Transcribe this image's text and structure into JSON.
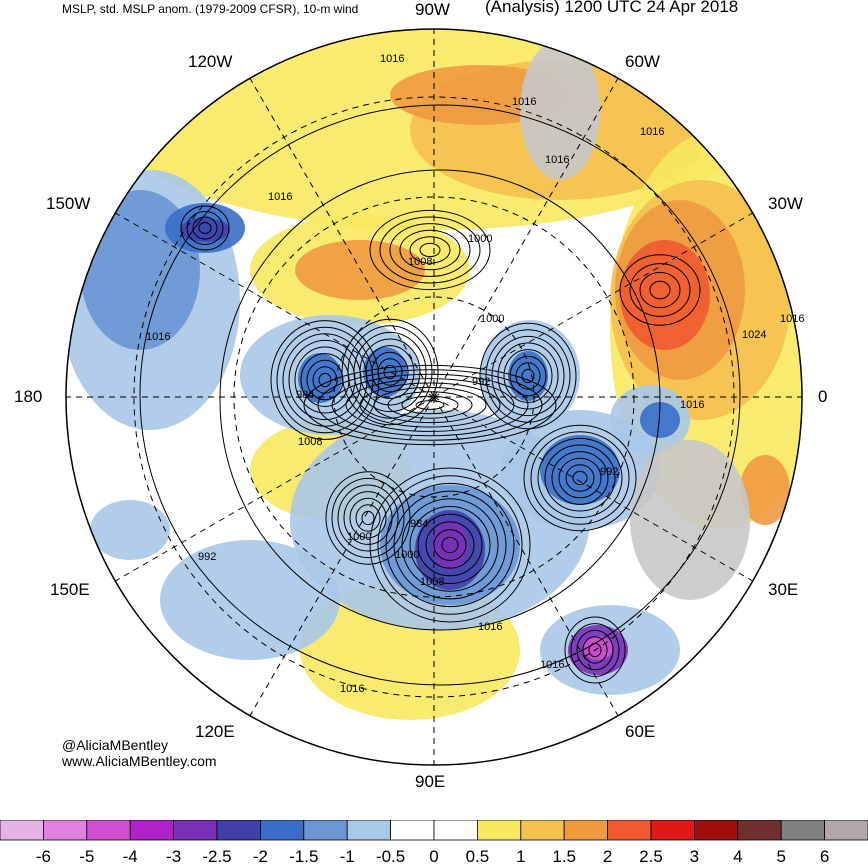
{
  "header": {
    "left_title": "MSLP, std. MSLP anom. (1979-2009 CFSR), 10-m wind",
    "right_title": "(Analysis) 1200 UTC 24 Apr 2018"
  },
  "longitude_labels": {
    "lon_90w": "90W",
    "lon_60w": "60W",
    "lon_30w": "30W",
    "lon_0": "0",
    "lon_30e": "30E",
    "lon_60e": "60E",
    "lon_90e": "90E",
    "lon_120e": "120E",
    "lon_150e": "150E",
    "lon_180": "180",
    "lon_150w": "150W",
    "lon_120w": "120W"
  },
  "pressure_labels": [
    "1016",
    "1016",
    "1016",
    "1016",
    "1016",
    "1008",
    "1000",
    "1000",
    "992",
    "984",
    "1024",
    "1016",
    "1016",
    "1016",
    "1008",
    "992",
    "984",
    "1000",
    "1008",
    "1016",
    "1016",
    "1016",
    "992",
    "1000"
  ],
  "credits": {
    "handle": "@AliciaMBentley",
    "website": "www.AliciaMBentley.com"
  },
  "colorbar": {
    "ticks": [
      "-6",
      "-5",
      "-4",
      "-3",
      "-2.5",
      "-2",
      "-1.5",
      "-1",
      "-0.5",
      "0",
      "0.5",
      "1",
      "1.5",
      "2",
      "2.5",
      "3",
      "4",
      "5",
      "6"
    ],
    "colors": [
      "#e6b3e6",
      "#e080e0",
      "#d050d0",
      "#b020c8",
      "#7a30b8",
      "#4040a8",
      "#3a6ec8",
      "#6a96d4",
      "#a8c8e8",
      "#ffffff",
      "#ffffff",
      "#f8e860",
      "#f4c050",
      "#f09a40",
      "#f05a30",
      "#e01818",
      "#a00e0e",
      "#703030",
      "#808080",
      "#b0a8a8"
    ]
  },
  "map_colors": {
    "land": "#c8c8c8",
    "positive_anomaly": "#f4c050",
    "negative_anomaly": "#6a96d4",
    "contour": "#000000"
  }
}
